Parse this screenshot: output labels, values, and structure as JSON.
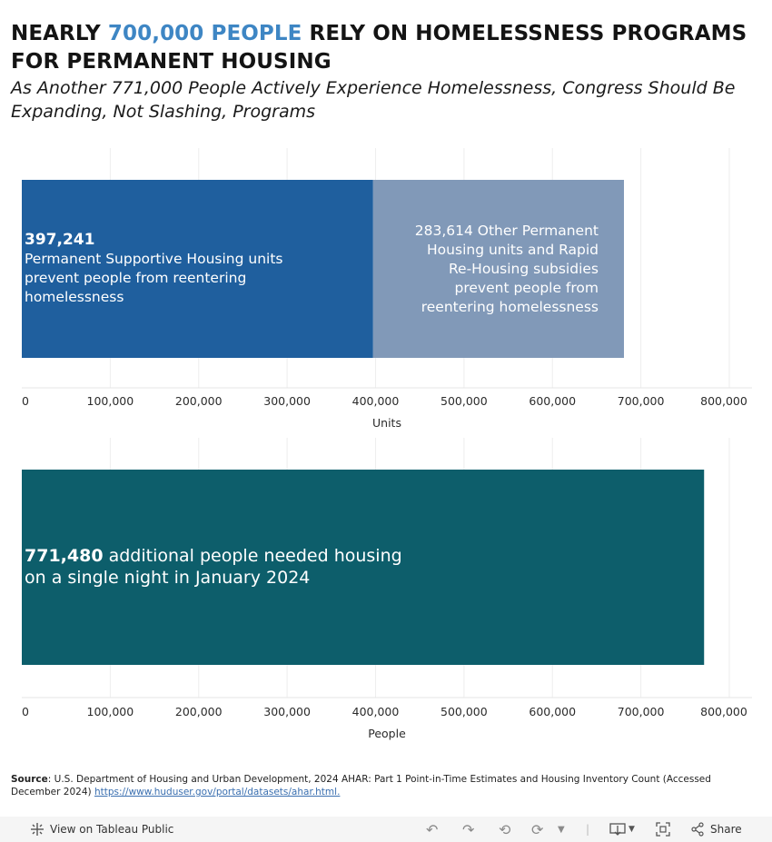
{
  "header": {
    "title_prefix": "NEARLY ",
    "title_accent": "700,000 PEOPLE",
    "title_suffix": " RELY ON HOMELESSNESS PROGRAMS FOR PERMANENT HOUSING",
    "subtitle": "As Another 771,000 People Actively Experience Homelessness, Congress Should Be Expanding, Not Slashing, Programs",
    "accent_color": "#3e86c4"
  },
  "chart_data": [
    {
      "type": "bar",
      "orientation": "horizontal",
      "stacked": true,
      "xlabel": "Units",
      "xlim": [
        0,
        800000
      ],
      "ticks": [
        "0",
        "100,000",
        "200,000",
        "300,000",
        "400,000",
        "500,000",
        "600,000",
        "700,000",
        "800,000"
      ],
      "tick_values": [
        0,
        100000,
        200000,
        300000,
        400000,
        500000,
        600000,
        700000,
        800000
      ],
      "series": [
        {
          "value": 397241,
          "value_label": "397,241",
          "label": "Permanent Supportive Housing units prevent people from reentering homelessness",
          "color": "#1f5f9e"
        },
        {
          "value": 283614,
          "value_label": "283,614",
          "label": "283,614 Other Permanent Housing units and Rapid Re-Housing subsidies prevent people from reentering homelessness",
          "color": "#8199b8"
        }
      ]
    },
    {
      "type": "bar",
      "orientation": "horizontal",
      "xlabel": "People",
      "xlim": [
        0,
        800000
      ],
      "ticks": [
        "0",
        "100,000",
        "200,000",
        "300,000",
        "400,000",
        "500,000",
        "600,000",
        "700,000",
        "800,000"
      ],
      "tick_values": [
        0,
        100000,
        200000,
        300000,
        400000,
        500000,
        600000,
        700000,
        800000
      ],
      "series": [
        {
          "value": 771480,
          "value_label": "771,480",
          "label": " additional people needed housing on a single night in January 2024",
          "color": "#0d5e6b"
        }
      ]
    }
  ],
  "source": {
    "label": "Source",
    "text": ": U.S. Department of Housing and Urban Development, 2024 AHAR: Part 1 Point-in-Time Estimates and Housing Inventory Count (Accessed December 2024) ",
    "link": "https://www.huduser.gov/portal/datasets/ahar.html."
  },
  "toolbar": {
    "view_label": "View on Tableau Public",
    "share_label": "Share",
    "icons": [
      "tableau-icon",
      "undo-icon",
      "redo-icon",
      "revert-icon",
      "refresh-icon",
      "download-icon",
      "fullscreen-icon",
      "share-icon"
    ]
  }
}
